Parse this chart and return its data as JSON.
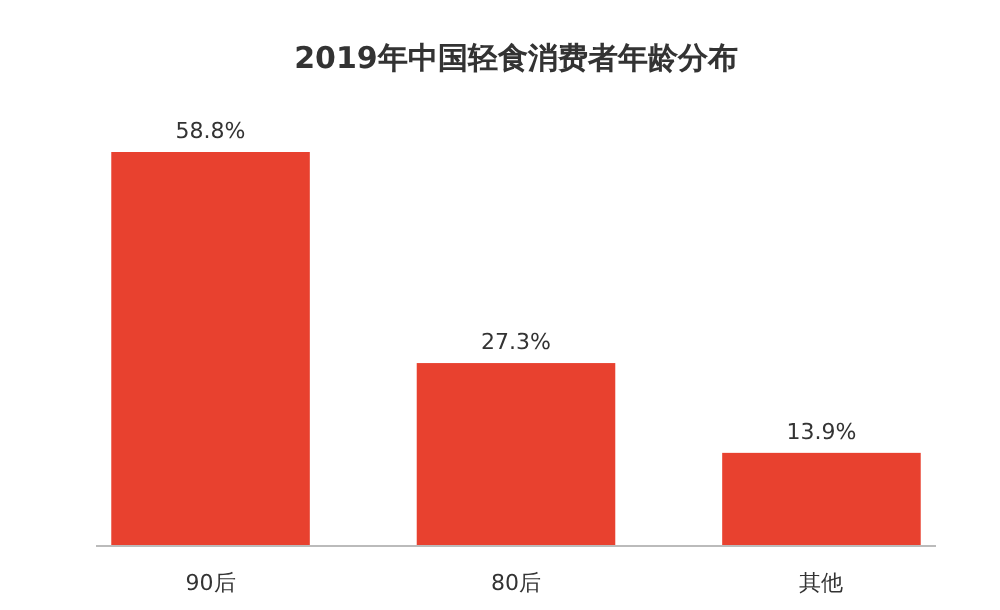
{
  "chart_data": {
    "type": "bar",
    "title": "2019年中国轻食消费者年龄分布",
    "categories": [
      "90后",
      "80后",
      "其他"
    ],
    "values": [
      58.8,
      27.3,
      13.9
    ],
    "value_labels": [
      "58.8%",
      "27.3%",
      "13.9%"
    ],
    "color": "#e8412f"
  }
}
